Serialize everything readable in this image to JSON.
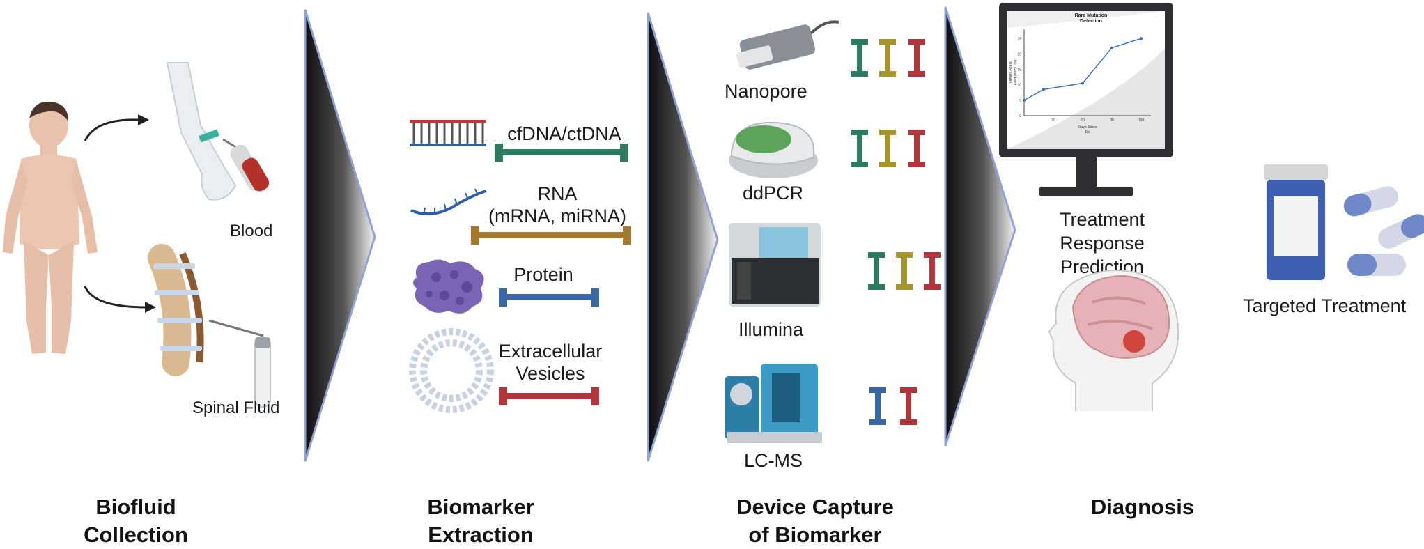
{
  "stages": [
    {
      "title": "Biofluid\nCollection"
    },
    {
      "title": "Biomarker\nExtraction"
    },
    {
      "title": "Device Capture\nof Biomarker"
    },
    {
      "title": "Diagnosis"
    }
  ],
  "collection": {
    "blood_label": "Blood",
    "spinal_label": "Spinal Fluid"
  },
  "biomarkers": [
    {
      "label": "cfDNA/ctDNA",
      "color": "#2f7a62"
    },
    {
      "label": "RNA\n(mRNA, miRNA)",
      "color": "#a5792d"
    },
    {
      "label": "Protein",
      "color": "#3a68a5"
    },
    {
      "label": "Extracellular\nVesicles",
      "color": "#b0363c"
    }
  ],
  "devices": [
    {
      "label": "Nanopore",
      "bars": [
        "#2f7a62",
        "#a5952d",
        "#b0363c"
      ]
    },
    {
      "label": "ddPCR",
      "bars": [
        "#2f7a62",
        "#a5952d",
        "#b0363c"
      ]
    },
    {
      "label": "Illumina",
      "bars": [
        "#2f7a62",
        "#a5952d",
        "#b0363c"
      ]
    },
    {
      "label": "LC-MS",
      "bars": [
        "#3a68a5",
        "#b0363c"
      ]
    }
  ],
  "diagnosis": {
    "monitor_chart": {
      "title": "Rare Mutation\nDetection",
      "xlabel": "Days Since\nDx",
      "ylabel": "Variant Allele\nFrequency (%)"
    },
    "treatment_prediction_label": "Treatment Response\nPrediction",
    "targeted_treatment_label": "Targeted Treatment"
  },
  "chart_data": {
    "type": "line",
    "title": "Rare Mutation Detection",
    "xlabel": "Days Since Dx",
    "ylabel": "Variant Allele Frequency (%)",
    "x": [
      0,
      20,
      60,
      90,
      120
    ],
    "y": [
      5,
      8.5,
      10.5,
      22,
      25
    ],
    "xticks": [
      "30",
      "60",
      "90",
      "120"
    ],
    "yticks": [
      "0",
      "5",
      "10",
      "15",
      "20",
      "25"
    ],
    "xlim": [
      0,
      130
    ],
    "ylim": [
      0,
      28
    ],
    "series_color": "#3a66c4"
  },
  "colors": {
    "arrow_dark": "#1a1a1a",
    "arrow_edge": "#8a9fd2"
  }
}
